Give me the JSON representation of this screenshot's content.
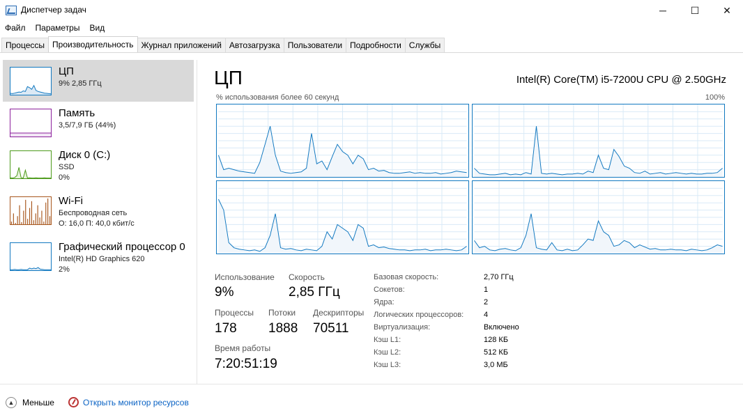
{
  "window": {
    "title": "Диспетчер задач",
    "minimize": "─",
    "maximize": "☐",
    "close": "✕",
    "icon": "task-manager-icon"
  },
  "menu": [
    "Файл",
    "Параметры",
    "Вид"
  ],
  "tabs": [
    {
      "label": "Процессы",
      "active": false
    },
    {
      "label": "Производительность",
      "active": true
    },
    {
      "label": "Журнал приложений",
      "active": false
    },
    {
      "label": "Автозагрузка",
      "active": false
    },
    {
      "label": "Пользователи",
      "active": false
    },
    {
      "label": "Подробности",
      "active": false
    },
    {
      "label": "Службы",
      "active": false
    }
  ],
  "resources": [
    {
      "title": "ЦП",
      "lines": [
        "9% 2,85 ГГц"
      ],
      "color": "#1178c0",
      "fill": "#dbe9f5",
      "kind": "line",
      "values": [
        5,
        4,
        6,
        8,
        10,
        9,
        14,
        12,
        30,
        26,
        20,
        34,
        16,
        12,
        10,
        8,
        6,
        5,
        4,
        3
      ],
      "level": 0
    },
    {
      "title": "Память",
      "lines": [
        "3,5/7,9 ГБ (44%)"
      ],
      "color": "#8b1e9b",
      "fill": "#f2e6f5",
      "kind": "memory",
      "values": [],
      "level": 0.44
    },
    {
      "title": "Диск 0 (C:)",
      "lines": [
        "SSD",
        "0%"
      ],
      "color": "#4c9a1a",
      "fill": "#e8f3dd",
      "kind": "line",
      "values": [
        2,
        1,
        3,
        10,
        40,
        2,
        1,
        30,
        1,
        2,
        1,
        1,
        2,
        1,
        1,
        1,
        2,
        1,
        1,
        1
      ],
      "level": 0
    },
    {
      "title": "Wi-Fi",
      "lines": [
        "Беспроводная сеть",
        "О: 16,0 П: 40,0 кбит/с"
      ],
      "color": "#a7561c",
      "fill": "#f3e7dc",
      "kind": "bars",
      "values": [
        10,
        40,
        5,
        30,
        70,
        8,
        50,
        90,
        20,
        60,
        85,
        15,
        40,
        70,
        25,
        50,
        10,
        80,
        95,
        30
      ],
      "level": 0
    },
    {
      "title": "Графический процессор 0",
      "lines": [
        "Intel(R) HD Graphics 620",
        "2%"
      ],
      "color": "#1178c0",
      "fill": "#dbe9f5",
      "kind": "line",
      "values": [
        2,
        2,
        3,
        2,
        2,
        3,
        2,
        2,
        2,
        8,
        5,
        8,
        6,
        10,
        4,
        3,
        2,
        2,
        2,
        2
      ],
      "level": 0
    }
  ],
  "main": {
    "title": "ЦП",
    "model": "Intel(R) Core(TM) i5-7200U CPU @ 2.50GHz",
    "graph_caption": "% использования более 60 секунд",
    "graph_max": "100%",
    "cores": [
      [
        30,
        10,
        12,
        10,
        8,
        7,
        6,
        5,
        20,
        45,
        70,
        30,
        8,
        6,
        5,
        6,
        7,
        12,
        60,
        18,
        22,
        10,
        28,
        45,
        35,
        30,
        18,
        30,
        25,
        10,
        12,
        8,
        9,
        6,
        5,
        5,
        6,
        7,
        5,
        6,
        5,
        5,
        6,
        4,
        5,
        6,
        8,
        7,
        6
      ],
      [
        12,
        5,
        4,
        3,
        3,
        4,
        5,
        3,
        4,
        3,
        6,
        4,
        70,
        5,
        4,
        5,
        4,
        3,
        4,
        4,
        5,
        4,
        8,
        6,
        30,
        12,
        10,
        38,
        28,
        15,
        12,
        6,
        5,
        8,
        4,
        5,
        6,
        4,
        5,
        6,
        5,
        4,
        5,
        4,
        4,
        5,
        5,
        6,
        12
      ],
      [
        75,
        60,
        15,
        8,
        6,
        5,
        4,
        5,
        3,
        8,
        25,
        55,
        8,
        6,
        7,
        5,
        4,
        6,
        5,
        4,
        10,
        30,
        20,
        40,
        35,
        30,
        18,
        40,
        35,
        10,
        12,
        8,
        9,
        7,
        6,
        5,
        5,
        4,
        5,
        5,
        6,
        4,
        5,
        5,
        6,
        5,
        4,
        5,
        10
      ],
      [
        18,
        8,
        10,
        5,
        4,
        6,
        7,
        5,
        4,
        8,
        25,
        55,
        8,
        6,
        5,
        15,
        5,
        4,
        6,
        4,
        5,
        12,
        20,
        18,
        45,
        30,
        25,
        10,
        12,
        18,
        15,
        8,
        12,
        9,
        6,
        7,
        5,
        5,
        6,
        5,
        5,
        4,
        6,
        5,
        4,
        5,
        8,
        12,
        10
      ]
    ],
    "stats": [
      {
        "label": "Использование",
        "value": "9%"
      },
      {
        "label": "Скорость",
        "value": "2,85 ГГц"
      },
      {
        "label": "Процессы",
        "value": "178"
      },
      {
        "label": "Потоки",
        "value": "1888"
      },
      {
        "label": "Дескрипторы",
        "value": "70511"
      },
      {
        "label": "Время работы",
        "value": "7:20:51:19"
      }
    ],
    "specs": [
      {
        "label": "Базовая скорость:",
        "value": "2,70 ГГц"
      },
      {
        "label": "Сокетов:",
        "value": "1"
      },
      {
        "label": "Ядра:",
        "value": "2"
      },
      {
        "label": "Логических процессоров:",
        "value": "4"
      },
      {
        "label": "Виртуализация:",
        "value": "Включено"
      },
      {
        "label": "Кэш L1:",
        "value": "128 КБ"
      },
      {
        "label": "Кэш L2:",
        "value": "512 КБ"
      },
      {
        "label": "Кэш L3:",
        "value": "3,0 МБ"
      }
    ]
  },
  "footer": {
    "less_label": "Меньше",
    "monitor_label": "Открыть монитор ресурсов"
  }
}
